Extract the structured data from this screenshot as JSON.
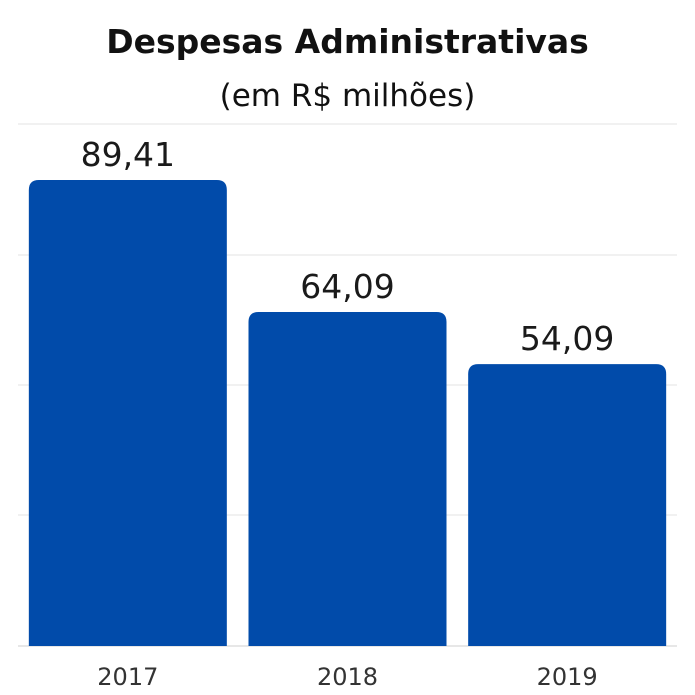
{
  "colors": {
    "bar": "#014BAA",
    "grid": "#e3e3e3",
    "baseline": "#cfcfcf"
  },
  "chart_data": {
    "type": "bar",
    "title": "Despesas Administrativas",
    "subtitle": "(em R$ milhões)",
    "categories": [
      "2017",
      "2018",
      "2019"
    ],
    "values": [
      89.41,
      64.09,
      54.09
    ],
    "value_labels": [
      "89,41",
      "64,09",
      "54,09"
    ],
    "xlabel": "",
    "ylabel": "",
    "ylim": [
      0,
      89.41
    ],
    "grid": true,
    "legend": "none"
  }
}
